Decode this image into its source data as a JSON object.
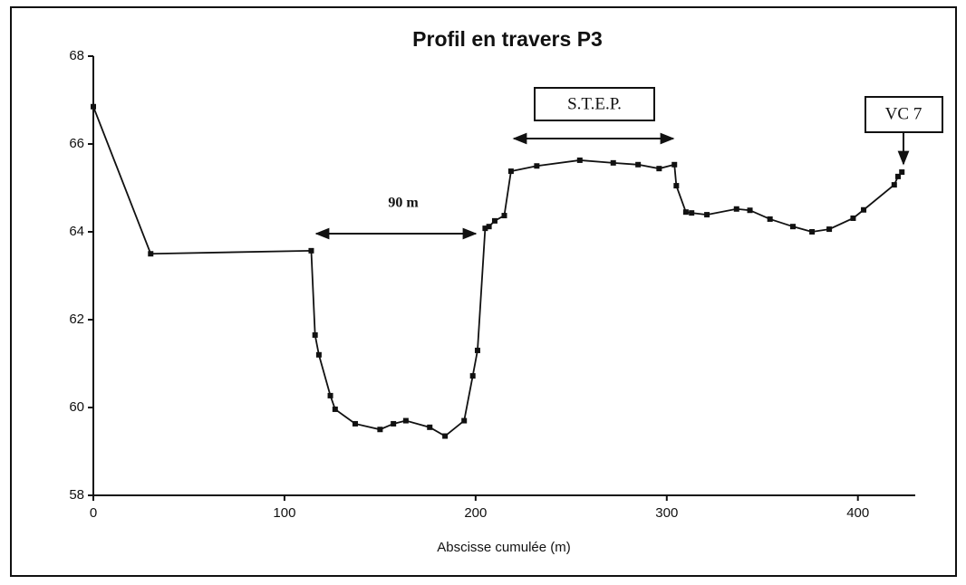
{
  "chart_data": {
    "type": "line",
    "title": "Profil en travers P3",
    "x_label": "Abscisse cumulée (m)",
    "annotations": [
      "90 m",
      "S.T.E.P.",
      "VC 7"
    ],
    "xlim": [
      0,
      430
    ],
    "xticks": [
      0,
      100,
      200,
      300,
      400
    ],
    "ylim": [
      58,
      68
    ],
    "yticks": [
      58,
      60,
      62,
      64,
      66,
      68
    ],
    "color": "#111111",
    "x": [
      0,
      30,
      114,
      116,
      118,
      124,
      126.5,
      137,
      150,
      157,
      163.5,
      176,
      184,
      194,
      198.5,
      201,
      205,
      207,
      210,
      215,
      218.5,
      232,
      254.5,
      272,
      285,
      296,
      304,
      305,
      310,
      313,
      321,
      336.5,
      343.5,
      354,
      366,
      376,
      385,
      397.5,
      403,
      419,
      421,
      423
    ],
    "values": [
      66.85,
      63.5,
      63.57,
      61.65,
      61.2,
      60.27,
      59.96,
      59.63,
      59.5,
      59.63,
      59.7,
      59.55,
      59.35,
      59.7,
      60.72,
      61.3,
      64.08,
      64.12,
      64.25,
      64.37,
      65.38,
      65.5,
      65.63,
      65.57,
      65.53,
      65.44,
      65.53,
      65.05,
      64.45,
      64.43,
      64.39,
      64.52,
      64.49,
      64.29,
      64.12,
      64.0,
      64.06,
      64.31,
      64.5,
      65.07,
      65.26,
      65.36
    ]
  }
}
